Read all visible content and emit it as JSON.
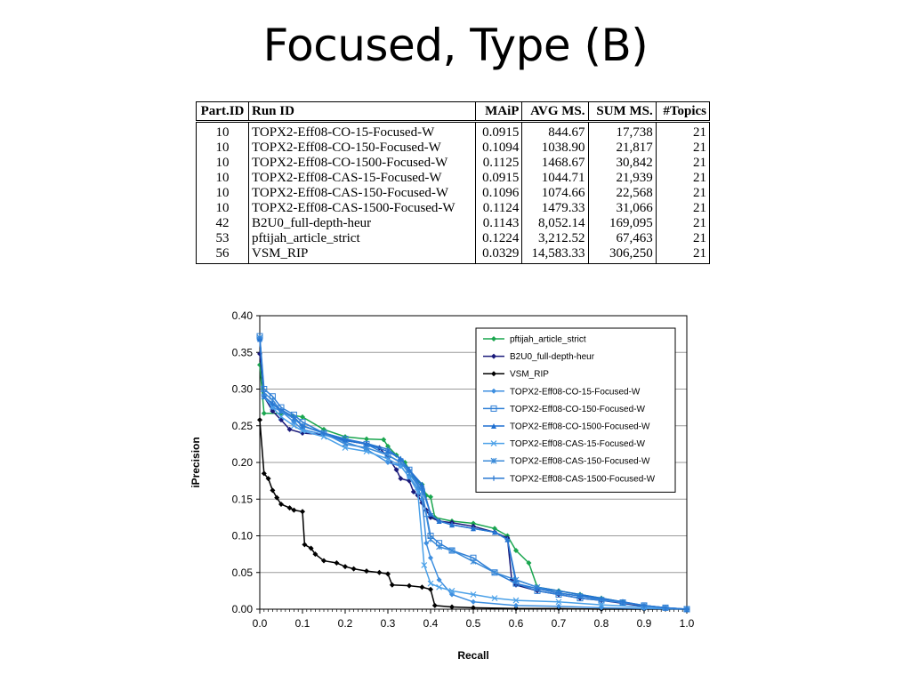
{
  "title": "Focused, Type (B)",
  "table": {
    "headers": [
      "Part.ID",
      "Run ID",
      "MAiP",
      "AVG MS.",
      "SUM MS.",
      "#Topics"
    ],
    "rows": [
      [
        "10",
        "TOPX2-Eff08-CO-15-Focused-W",
        "0.0915",
        "844.67",
        "17,738",
        "21"
      ],
      [
        "10",
        "TOPX2-Eff08-CO-150-Focused-W",
        "0.1094",
        "1038.90",
        "21,817",
        "21"
      ],
      [
        "10",
        "TOPX2-Eff08-CO-1500-Focused-W",
        "0.1125",
        "1468.67",
        "30,842",
        "21"
      ],
      [
        "10",
        "TOPX2-Eff08-CAS-15-Focused-W",
        "0.0915",
        "1044.71",
        "21,939",
        "21"
      ],
      [
        "10",
        "TOPX2-Eff08-CAS-150-Focused-W",
        "0.1096",
        "1074.66",
        "22,568",
        "21"
      ],
      [
        "10",
        "TOPX2-Eff08-CAS-1500-Focused-W",
        "0.1124",
        "1479.33",
        "31,066",
        "21"
      ],
      [
        "42",
        "B2U0_full-depth-heur",
        "0.1143",
        "8,052.14",
        "169,095",
        "21"
      ],
      [
        "53",
        "pftijah_article_strict",
        "0.1224",
        "3,212.52",
        "67,463",
        "21"
      ],
      [
        "56",
        "VSM_RIP",
        "0.0329",
        "14,583.33",
        "306,250",
        "21"
      ]
    ]
  },
  "chart_data": {
    "type": "line",
    "xlabel": "Recall",
    "ylabel": "iPrecision",
    "xlim": [
      0,
      1
    ],
    "ylim": [
      0,
      0.4
    ],
    "xticks": [
      "0.0",
      "0.1",
      "0.2",
      "0.3",
      "0.4",
      "0.5",
      "0.6",
      "0.7",
      "0.8",
      "0.9",
      "1.0"
    ],
    "yticks": [
      "0.00",
      "0.05",
      "0.10",
      "0.15",
      "0.20",
      "0.25",
      "0.30",
      "0.35",
      "0.40"
    ],
    "grid": "horizontal",
    "legend_position": "top-right",
    "series": [
      {
        "name": "pftijah_article_strict",
        "color": "#1aa64f",
        "marker": "diamond",
        "points": [
          [
            0,
            0.333
          ],
          [
            0.01,
            0.267
          ],
          [
            0.05,
            0.267
          ],
          [
            0.1,
            0.262
          ],
          [
            0.15,
            0.245
          ],
          [
            0.2,
            0.235
          ],
          [
            0.25,
            0.232
          ],
          [
            0.29,
            0.231
          ],
          [
            0.3,
            0.222
          ],
          [
            0.32,
            0.21
          ],
          [
            0.34,
            0.2
          ],
          [
            0.36,
            0.18
          ],
          [
            0.38,
            0.17
          ],
          [
            0.39,
            0.155
          ],
          [
            0.4,
            0.153
          ],
          [
            0.41,
            0.125
          ],
          [
            0.45,
            0.12
          ],
          [
            0.5,
            0.117
          ],
          [
            0.55,
            0.11
          ],
          [
            0.58,
            0.1
          ],
          [
            0.6,
            0.08
          ],
          [
            0.63,
            0.063
          ],
          [
            0.65,
            0.03
          ],
          [
            0.7,
            0.025
          ],
          [
            0.75,
            0.02
          ],
          [
            0.8,
            0.015
          ],
          [
            0.85,
            0.01
          ],
          [
            0.9,
            0.004
          ],
          [
            0.95,
            0.001
          ],
          [
            1.0,
            0.0
          ]
        ]
      },
      {
        "name": "B2U0_full-depth-heur",
        "color": "#1a1a7a",
        "marker": "diamond",
        "points": [
          [
            0,
            0.348
          ],
          [
            0.01,
            0.29
          ],
          [
            0.03,
            0.27
          ],
          [
            0.05,
            0.258
          ],
          [
            0.07,
            0.245
          ],
          [
            0.1,
            0.24
          ],
          [
            0.15,
            0.238
          ],
          [
            0.2,
            0.23
          ],
          [
            0.25,
            0.225
          ],
          [
            0.28,
            0.22
          ],
          [
            0.3,
            0.207
          ],
          [
            0.32,
            0.19
          ],
          [
            0.33,
            0.178
          ],
          [
            0.35,
            0.175
          ],
          [
            0.36,
            0.16
          ],
          [
            0.37,
            0.155
          ],
          [
            0.38,
            0.145
          ],
          [
            0.39,
            0.135
          ],
          [
            0.4,
            0.125
          ],
          [
            0.42,
            0.12
          ],
          [
            0.45,
            0.118
          ],
          [
            0.5,
            0.113
          ],
          [
            0.55,
            0.105
          ],
          [
            0.58,
            0.097
          ],
          [
            0.59,
            0.04
          ],
          [
            0.6,
            0.033
          ],
          [
            0.65,
            0.025
          ],
          [
            0.7,
            0.02
          ],
          [
            0.75,
            0.015
          ],
          [
            0.8,
            0.012
          ],
          [
            0.85,
            0.008
          ],
          [
            0.9,
            0.004
          ],
          [
            0.95,
            0.001
          ],
          [
            1.0,
            0.0
          ]
        ]
      },
      {
        "name": "VSM_RIP",
        "color": "#000000",
        "marker": "diamond",
        "points": [
          [
            0,
            0.258
          ],
          [
            0.01,
            0.185
          ],
          [
            0.02,
            0.178
          ],
          [
            0.03,
            0.162
          ],
          [
            0.04,
            0.152
          ],
          [
            0.05,
            0.143
          ],
          [
            0.07,
            0.138
          ],
          [
            0.08,
            0.135
          ],
          [
            0.1,
            0.133
          ],
          [
            0.105,
            0.088
          ],
          [
            0.12,
            0.083
          ],
          [
            0.13,
            0.075
          ],
          [
            0.15,
            0.066
          ],
          [
            0.18,
            0.063
          ],
          [
            0.2,
            0.058
          ],
          [
            0.22,
            0.055
          ],
          [
            0.25,
            0.052
          ],
          [
            0.28,
            0.05
          ],
          [
            0.3,
            0.048
          ],
          [
            0.31,
            0.033
          ],
          [
            0.35,
            0.032
          ],
          [
            0.38,
            0.03
          ],
          [
            0.4,
            0.027
          ],
          [
            0.41,
            0.005
          ],
          [
            0.45,
            0.003
          ],
          [
            0.5,
            0.002
          ],
          [
            0.6,
            0.001
          ],
          [
            0.7,
            0.001
          ],
          [
            0.8,
            0.0
          ],
          [
            0.9,
            0.0
          ],
          [
            1.0,
            0.0
          ]
        ]
      },
      {
        "name": "TOPX2-Eff08-CO-15-Focused-W",
        "color": "#3e8fe0",
        "marker": "diamond",
        "points": [
          [
            0,
            0.37
          ],
          [
            0.01,
            0.29
          ],
          [
            0.03,
            0.275
          ],
          [
            0.05,
            0.27
          ],
          [
            0.08,
            0.255
          ],
          [
            0.1,
            0.245
          ],
          [
            0.15,
            0.238
          ],
          [
            0.2,
            0.228
          ],
          [
            0.25,
            0.218
          ],
          [
            0.3,
            0.2
          ],
          [
            0.33,
            0.195
          ],
          [
            0.35,
            0.18
          ],
          [
            0.37,
            0.165
          ],
          [
            0.38,
            0.15
          ],
          [
            0.39,
            0.09
          ],
          [
            0.4,
            0.07
          ],
          [
            0.42,
            0.04
          ],
          [
            0.45,
            0.02
          ],
          [
            0.5,
            0.01
          ],
          [
            0.6,
            0.005
          ],
          [
            0.7,
            0.004
          ],
          [
            0.8,
            0.002
          ],
          [
            0.9,
            0.001
          ],
          [
            1.0,
            0.0
          ]
        ]
      },
      {
        "name": "TOPX2-Eff08-CO-150-Focused-W",
        "color": "#2f7fd6",
        "marker": "square",
        "points": [
          [
            0,
            0.372
          ],
          [
            0.01,
            0.3
          ],
          [
            0.03,
            0.29
          ],
          [
            0.05,
            0.275
          ],
          [
            0.08,
            0.265
          ],
          [
            0.1,
            0.255
          ],
          [
            0.15,
            0.24
          ],
          [
            0.2,
            0.232
          ],
          [
            0.25,
            0.225
          ],
          [
            0.3,
            0.21
          ],
          [
            0.33,
            0.2
          ],
          [
            0.35,
            0.19
          ],
          [
            0.38,
            0.16
          ],
          [
            0.39,
            0.13
          ],
          [
            0.4,
            0.1
          ],
          [
            0.42,
            0.09
          ],
          [
            0.45,
            0.08
          ],
          [
            0.5,
            0.07
          ],
          [
            0.55,
            0.05
          ],
          [
            0.6,
            0.035
          ],
          [
            0.65,
            0.025
          ],
          [
            0.7,
            0.02
          ],
          [
            0.75,
            0.015
          ],
          [
            0.8,
            0.012
          ],
          [
            0.85,
            0.009
          ],
          [
            0.9,
            0.005
          ],
          [
            0.95,
            0.002
          ],
          [
            1.0,
            0.0
          ]
        ]
      },
      {
        "name": "TOPX2-Eff08-CO-1500-Focused-W",
        "color": "#1f6fd0",
        "marker": "triangle",
        "points": [
          [
            0,
            0.368
          ],
          [
            0.01,
            0.29
          ],
          [
            0.03,
            0.28
          ],
          [
            0.05,
            0.27
          ],
          [
            0.08,
            0.26
          ],
          [
            0.1,
            0.25
          ],
          [
            0.15,
            0.24
          ],
          [
            0.2,
            0.23
          ],
          [
            0.25,
            0.225
          ],
          [
            0.3,
            0.215
          ],
          [
            0.33,
            0.205
          ],
          [
            0.35,
            0.19
          ],
          [
            0.38,
            0.17
          ],
          [
            0.4,
            0.13
          ],
          [
            0.42,
            0.12
          ],
          [
            0.45,
            0.115
          ],
          [
            0.5,
            0.11
          ],
          [
            0.55,
            0.105
          ],
          [
            0.58,
            0.095
          ],
          [
            0.6,
            0.04
          ],
          [
            0.65,
            0.03
          ],
          [
            0.7,
            0.025
          ],
          [
            0.75,
            0.02
          ],
          [
            0.8,
            0.015
          ],
          [
            0.85,
            0.01
          ],
          [
            0.9,
            0.005
          ],
          [
            0.95,
            0.002
          ],
          [
            1.0,
            0.0
          ]
        ]
      },
      {
        "name": "TOPX2-Eff08-CAS-15-Focused-W",
        "color": "#4aa0e8",
        "marker": "x",
        "points": [
          [
            0,
            0.37
          ],
          [
            0.01,
            0.29
          ],
          [
            0.03,
            0.275
          ],
          [
            0.05,
            0.262
          ],
          [
            0.08,
            0.25
          ],
          [
            0.1,
            0.243
          ],
          [
            0.15,
            0.235
          ],
          [
            0.2,
            0.22
          ],
          [
            0.25,
            0.215
          ],
          [
            0.3,
            0.205
          ],
          [
            0.33,
            0.195
          ],
          [
            0.35,
            0.18
          ],
          [
            0.37,
            0.16
          ],
          [
            0.385,
            0.06
          ],
          [
            0.4,
            0.035
          ],
          [
            0.42,
            0.03
          ],
          [
            0.45,
            0.025
          ],
          [
            0.5,
            0.02
          ],
          [
            0.55,
            0.015
          ],
          [
            0.6,
            0.012
          ],
          [
            0.7,
            0.01
          ],
          [
            0.8,
            0.006
          ],
          [
            0.9,
            0.003
          ],
          [
            1.0,
            0.0
          ]
        ]
      },
      {
        "name": "TOPX2-Eff08-CAS-150-Focused-W",
        "color": "#3a8ad8",
        "marker": "star",
        "points": [
          [
            0,
            0.37
          ],
          [
            0.01,
            0.295
          ],
          [
            0.03,
            0.285
          ],
          [
            0.05,
            0.27
          ],
          [
            0.08,
            0.26
          ],
          [
            0.1,
            0.25
          ],
          [
            0.15,
            0.24
          ],
          [
            0.2,
            0.225
          ],
          [
            0.25,
            0.22
          ],
          [
            0.3,
            0.21
          ],
          [
            0.33,
            0.2
          ],
          [
            0.35,
            0.185
          ],
          [
            0.38,
            0.16
          ],
          [
            0.4,
            0.095
          ],
          [
            0.42,
            0.085
          ],
          [
            0.45,
            0.08
          ],
          [
            0.5,
            0.065
          ],
          [
            0.55,
            0.05
          ],
          [
            0.6,
            0.04
          ],
          [
            0.65,
            0.03
          ],
          [
            0.7,
            0.022
          ],
          [
            0.75,
            0.018
          ],
          [
            0.8,
            0.013
          ],
          [
            0.85,
            0.009
          ],
          [
            0.9,
            0.005
          ],
          [
            0.95,
            0.002
          ],
          [
            1.0,
            0.0
          ]
        ]
      },
      {
        "name": "TOPX2-Eff08-CAS-1500-Focused-W",
        "color": "#2a78d2",
        "marker": "plus",
        "points": [
          [
            0,
            0.368
          ],
          [
            0.01,
            0.29
          ],
          [
            0.03,
            0.28
          ],
          [
            0.05,
            0.272
          ],
          [
            0.08,
            0.262
          ],
          [
            0.1,
            0.25
          ],
          [
            0.15,
            0.24
          ],
          [
            0.2,
            0.232
          ],
          [
            0.25,
            0.226
          ],
          [
            0.3,
            0.218
          ],
          [
            0.33,
            0.205
          ],
          [
            0.35,
            0.19
          ],
          [
            0.38,
            0.165
          ],
          [
            0.4,
            0.13
          ],
          [
            0.42,
            0.12
          ],
          [
            0.45,
            0.115
          ],
          [
            0.5,
            0.11
          ],
          [
            0.55,
            0.105
          ],
          [
            0.58,
            0.095
          ],
          [
            0.6,
            0.035
          ],
          [
            0.65,
            0.028
          ],
          [
            0.7,
            0.022
          ],
          [
            0.75,
            0.018
          ],
          [
            0.8,
            0.014
          ],
          [
            0.85,
            0.01
          ],
          [
            0.9,
            0.005
          ],
          [
            0.95,
            0.002
          ],
          [
            1.0,
            0.0
          ]
        ]
      }
    ]
  }
}
